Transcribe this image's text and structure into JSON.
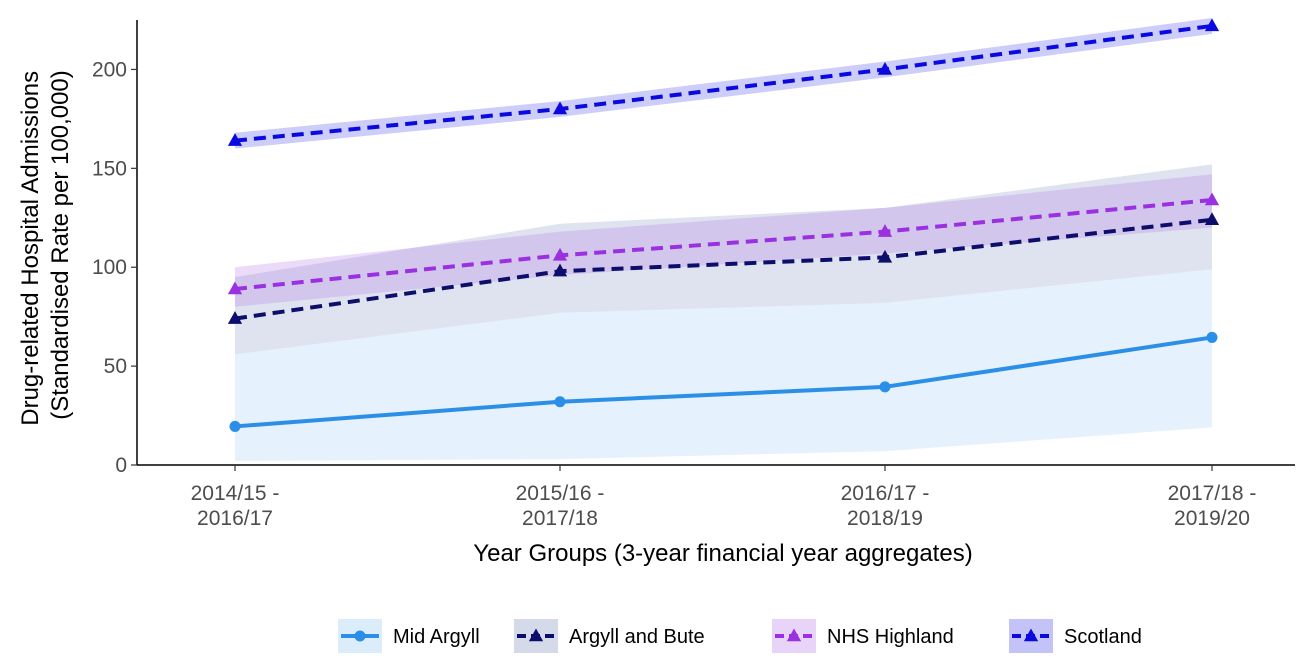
{
  "chart_data": {
    "type": "line",
    "title": "",
    "xlabel": "Year Groups (3-year financial year aggregates)",
    "ylabel_lines": [
      "Drug-related Hospital Admissions",
      "(Standardised Rate per 100,000)"
    ],
    "categories": [
      [
        "2014/15 -",
        "2016/17"
      ],
      [
        "2015/16 -",
        "2017/18"
      ],
      [
        "2016/17 -",
        "2018/19"
      ],
      [
        "2017/18 -",
        "2019/20"
      ]
    ],
    "ylim": [
      0,
      225
    ],
    "yticks": [
      0,
      50,
      100,
      150,
      200
    ],
    "grid": false,
    "legend_position": "bottom",
    "series": [
      {
        "name": "Mid Argyll",
        "values": [
          19.5,
          32,
          39.5,
          64.5
        ],
        "ci_lower": [
          2,
          3,
          7,
          19
        ],
        "ci_upper": [
          56,
          77,
          82,
          99
        ],
        "color": "#2b8fe8",
        "band_color": "#2b8fe8",
        "band_opacity": 0.12,
        "marker": "circle",
        "dashed": false
      },
      {
        "name": "Argyll and Bute",
        "values": [
          74,
          98,
          105,
          124
        ],
        "ci_lower": [
          56,
          77,
          82,
          99
        ],
        "ci_upper": [
          95,
          122,
          130,
          152
        ],
        "color": "#0d0d6b",
        "band_color": "#3a4f9c",
        "band_opacity": 0.16,
        "marker": "triangle",
        "dashed": true
      },
      {
        "name": "NHS Highland",
        "values": [
          89,
          106,
          118,
          134
        ],
        "ci_lower": [
          80,
          96,
          107,
          120
        ],
        "ci_upper": [
          100,
          118,
          130,
          147
        ],
        "color": "#9b30e0",
        "band_color": "#b070e8",
        "band_opacity": 0.25,
        "marker": "triangle",
        "dashed": true
      },
      {
        "name": "Scotland",
        "values": [
          164,
          180,
          200,
          222
        ],
        "ci_lower": [
          160,
          176,
          196,
          218
        ],
        "ci_upper": [
          168,
          184,
          204,
          226
        ],
        "color": "#0a0ae0",
        "band_color": "#4a4ae8",
        "band_opacity": 0.28,
        "marker": "triangle",
        "dashed": true
      }
    ]
  }
}
